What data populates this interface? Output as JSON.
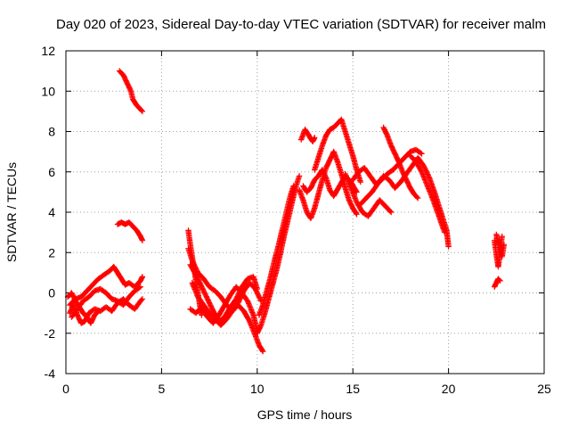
{
  "chart_data": {
    "type": "scatter",
    "title": "Day 020 of 2023, Sidereal Day-to-day VTEC variation (SDTVAR) for receiver malm",
    "xlabel": "GPS time / hours",
    "ylabel": "SDTVAR / TECUs",
    "xlim": [
      0,
      25
    ],
    "ylim": [
      -4,
      12
    ],
    "xticks": [
      0,
      5,
      10,
      15,
      20,
      25
    ],
    "yticks": [
      -4,
      -2,
      0,
      2,
      4,
      6,
      8,
      10,
      12
    ],
    "grid": true,
    "marker": "plus",
    "series": [
      {
        "name": "SDTVAR",
        "color": "#ff0000",
        "tracks": [
          [
            [
              0.2,
              -1.0
            ],
            [
              0.4,
              -0.6
            ],
            [
              0.6,
              -1.1
            ],
            [
              0.8,
              -1.5
            ],
            [
              1.0,
              -1.4
            ],
            [
              1.2,
              -1.0
            ],
            [
              1.5,
              -0.8
            ],
            [
              1.8,
              -0.9
            ],
            [
              2.1,
              -0.7
            ],
            [
              2.4,
              -0.9
            ],
            [
              2.7,
              -0.5
            ],
            [
              3.0,
              -0.3
            ],
            [
              3.3,
              -0.6
            ],
            [
              3.6,
              -0.8
            ],
            [
              3.9,
              -0.4
            ],
            [
              4.0,
              -0.3
            ]
          ],
          [
            [
              0.2,
              -0.6
            ],
            [
              0.5,
              -0.3
            ],
            [
              0.8,
              -0.2
            ],
            [
              1.1,
              0.1
            ],
            [
              1.4,
              0.4
            ],
            [
              1.7,
              0.7
            ],
            [
              2.0,
              0.9
            ],
            [
              2.3,
              1.1
            ],
            [
              2.5,
              1.3
            ],
            [
              2.7,
              1.0
            ],
            [
              2.9,
              0.7
            ],
            [
              3.1,
              0.4
            ],
            [
              3.3,
              0.5
            ],
            [
              3.6,
              0.3
            ],
            [
              3.9,
              0.6
            ],
            [
              4.0,
              0.8
            ]
          ],
          [
            [
              0.3,
              -1.2
            ],
            [
              0.6,
              -0.8
            ],
            [
              0.9,
              -0.4
            ],
            [
              1.2,
              -0.2
            ],
            [
              1.5,
              0.1
            ],
            [
              1.8,
              0.2
            ],
            [
              2.1,
              0.0
            ],
            [
              2.4,
              -0.3
            ],
            [
              2.7,
              -0.4
            ],
            [
              3.0,
              -0.6
            ],
            [
              3.3,
              -0.2
            ],
            [
              3.6,
              0.1
            ],
            [
              3.9,
              0.3
            ]
          ],
          [
            [
              0.1,
              -0.2
            ],
            [
              0.3,
              0.0
            ],
            [
              0.5,
              -0.4
            ],
            [
              0.7,
              -0.7
            ],
            [
              0.9,
              -1.0
            ],
            [
              1.1,
              -1.2
            ],
            [
              1.3,
              -1.5
            ],
            [
              1.5,
              -1.1
            ],
            [
              1.7,
              -0.9
            ]
          ],
          [
            [
              2.8,
              11.0
            ],
            [
              3.0,
              10.8
            ],
            [
              3.2,
              10.4
            ],
            [
              3.4,
              10.0
            ],
            [
              3.5,
              9.6
            ],
            [
              3.7,
              9.3
            ],
            [
              3.9,
              9.1
            ],
            [
              4.0,
              9.0
            ]
          ],
          [
            [
              2.7,
              3.4
            ],
            [
              2.9,
              3.5
            ],
            [
              3.1,
              3.4
            ],
            [
              3.3,
              3.5
            ],
            [
              3.5,
              3.3
            ],
            [
              3.7,
              3.1
            ],
            [
              3.9,
              2.8
            ],
            [
              4.0,
              2.6
            ]
          ],
          [
            [
              6.4,
              3.1
            ],
            [
              6.5,
              2.4
            ],
            [
              6.6,
              1.8
            ],
            [
              6.7,
              1.2
            ],
            [
              6.8,
              0.6
            ],
            [
              6.9,
              0.0
            ],
            [
              7.0,
              -0.6
            ],
            [
              7.1,
              -1.1
            ]
          ],
          [
            [
              6.4,
              2.2
            ],
            [
              6.6,
              1.6
            ],
            [
              6.9,
              1.0
            ],
            [
              7.2,
              0.7
            ],
            [
              7.5,
              0.3
            ],
            [
              7.8,
              0.1
            ],
            [
              8.1,
              -0.2
            ],
            [
              8.4,
              -0.6
            ],
            [
              8.7,
              -0.9
            ],
            [
              9.0,
              -0.5
            ],
            [
              9.3,
              0.1
            ],
            [
              9.6,
              0.5
            ],
            [
              9.9,
              0.2
            ],
            [
              10.2,
              -0.4
            ]
          ],
          [
            [
              6.5,
              1.4
            ],
            [
              6.8,
              0.9
            ],
            [
              7.1,
              0.3
            ],
            [
              7.4,
              -0.3
            ],
            [
              7.7,
              -0.9
            ],
            [
              8.0,
              -1.4
            ],
            [
              8.3,
              -1.2
            ],
            [
              8.6,
              -0.7
            ],
            [
              8.9,
              -0.3
            ],
            [
              9.2,
              0.3
            ],
            [
              9.5,
              0.7
            ],
            [
              9.8,
              0.8
            ],
            [
              10.0,
              0.2
            ]
          ],
          [
            [
              6.6,
              0.5
            ],
            [
              6.9,
              -0.2
            ],
            [
              7.2,
              -0.6
            ],
            [
              7.5,
              -1.0
            ],
            [
              7.8,
              -1.3
            ],
            [
              8.1,
              -1.6
            ],
            [
              8.4,
              -1.3
            ],
            [
              8.7,
              -0.9
            ],
            [
              9.0,
              -0.6
            ],
            [
              9.3,
              -0.9
            ],
            [
              9.6,
              -1.4
            ],
            [
              9.9,
              -2.1
            ],
            [
              10.1,
              -2.6
            ],
            [
              10.3,
              -2.9
            ]
          ],
          [
            [
              6.5,
              -0.8
            ],
            [
              6.8,
              -1.0
            ],
            [
              7.1,
              -0.7
            ],
            [
              7.4,
              -1.2
            ],
            [
              7.7,
              -1.5
            ],
            [
              8.0,
              -1.1
            ],
            [
              8.3,
              -0.6
            ],
            [
              8.6,
              -0.1
            ],
            [
              8.9,
              0.3
            ],
            [
              9.2,
              0.0
            ],
            [
              9.5,
              -0.4
            ],
            [
              9.8,
              -1.1
            ],
            [
              10.0,
              -1.9
            ]
          ],
          [
            [
              10.0,
              -2.0
            ],
            [
              10.2,
              -1.6
            ],
            [
              10.4,
              -1.0
            ],
            [
              10.6,
              -0.3
            ],
            [
              10.8,
              0.4
            ],
            [
              11.0,
              1.1
            ],
            [
              11.2,
              1.9
            ],
            [
              11.4,
              2.8
            ],
            [
              11.6,
              3.6
            ],
            [
              11.8,
              4.4
            ],
            [
              12.0,
              5.2
            ],
            [
              12.2,
              5.8
            ]
          ],
          [
            [
              10.1,
              -1.1
            ],
            [
              10.3,
              -0.6
            ],
            [
              10.5,
              0.1
            ],
            [
              10.7,
              0.8
            ],
            [
              10.9,
              1.6
            ],
            [
              11.1,
              2.3
            ],
            [
              11.3,
              3.1
            ],
            [
              11.5,
              3.9
            ],
            [
              11.7,
              4.7
            ],
            [
              11.9,
              5.3
            ]
          ],
          [
            [
              12.2,
              5.1
            ],
            [
              12.4,
              4.6
            ],
            [
              12.6,
              4.0
            ],
            [
              12.8,
              3.7
            ],
            [
              13.0,
              4.2
            ],
            [
              13.2,
              4.9
            ],
            [
              13.4,
              5.6
            ],
            [
              13.6,
              6.2
            ],
            [
              13.8,
              6.6
            ],
            [
              14.0,
              7.0
            ],
            [
              14.2,
              6.5
            ],
            [
              14.4,
              5.9
            ],
            [
              14.6,
              5.2
            ],
            [
              14.8,
              4.6
            ],
            [
              15.0,
              4.2
            ],
            [
              15.2,
              3.9
            ]
          ],
          [
            [
              12.3,
              7.6
            ],
            [
              12.5,
              8.1
            ],
            [
              12.7,
              7.8
            ],
            [
              12.9,
              7.5
            ],
            [
              13.0,
              7.7
            ]
          ],
          [
            [
              13.0,
              6.1
            ],
            [
              13.2,
              6.7
            ],
            [
              13.4,
              7.3
            ],
            [
              13.6,
              7.8
            ],
            [
              13.8,
              8.1
            ],
            [
              14.0,
              8.2
            ],
            [
              14.2,
              8.4
            ],
            [
              14.4,
              8.6
            ],
            [
              14.6,
              8.0
            ],
            [
              14.8,
              7.4
            ],
            [
              15.0,
              6.8
            ],
            [
              15.2,
              6.1
            ],
            [
              15.4,
              5.5
            ]
          ],
          [
            [
              12.4,
              5.3
            ],
            [
              12.6,
              5.0
            ],
            [
              12.8,
              5.2
            ],
            [
              13.0,
              5.6
            ],
            [
              13.2,
              5.8
            ],
            [
              13.4,
              6.1
            ],
            [
              13.6,
              5.7
            ],
            [
              13.8,
              5.1
            ],
            [
              14.0,
              4.8
            ],
            [
              14.3,
              5.3
            ],
            [
              14.6,
              5.8
            ],
            [
              14.9,
              5.5
            ],
            [
              15.2,
              5.0
            ]
          ],
          [
            [
              14.6,
              5.9
            ],
            [
              14.9,
              5.2
            ],
            [
              15.2,
              4.5
            ],
            [
              15.5,
              4.0
            ],
            [
              15.8,
              3.8
            ],
            [
              16.1,
              4.2
            ],
            [
              16.4,
              4.6
            ],
            [
              16.7,
              4.3
            ],
            [
              17.0,
              4.0
            ]
          ],
          [
            [
              15.0,
              5.6
            ],
            [
              15.3,
              6.0
            ],
            [
              15.6,
              6.2
            ],
            [
              15.9,
              5.8
            ],
            [
              16.2,
              5.4
            ],
            [
              16.5,
              5.6
            ],
            [
              16.8,
              5.9
            ],
            [
              17.1,
              6.1
            ],
            [
              17.4,
              6.4
            ],
            [
              17.7,
              6.7
            ],
            [
              18.0,
              7.0
            ],
            [
              18.3,
              7.1
            ],
            [
              18.6,
              6.9
            ]
          ],
          [
            [
              16.6,
              8.2
            ],
            [
              16.8,
              7.8
            ],
            [
              17.0,
              7.3
            ],
            [
              17.2,
              6.9
            ],
            [
              17.4,
              6.5
            ],
            [
              17.6,
              6.0
            ],
            [
              17.8,
              5.6
            ],
            [
              18.0,
              5.2
            ],
            [
              18.2,
              4.9
            ],
            [
              18.4,
              4.7
            ]
          ],
          [
            [
              15.4,
              4.4
            ],
            [
              15.7,
              4.7
            ],
            [
              16.0,
              5.0
            ],
            [
              16.3,
              5.4
            ],
            [
              16.6,
              5.8
            ],
            [
              16.9,
              5.6
            ],
            [
              17.2,
              5.2
            ],
            [
              17.5,
              5.5
            ],
            [
              17.8,
              5.9
            ],
            [
              18.1,
              6.3
            ],
            [
              18.4,
              6.7
            ],
            [
              18.7,
              6.3
            ],
            [
              19.0,
              5.7
            ],
            [
              19.3,
              4.9
            ],
            [
              19.6,
              4.0
            ],
            [
              19.9,
              3.1
            ],
            [
              20.0,
              2.3
            ]
          ],
          [
            [
              18.0,
              6.8
            ],
            [
              18.3,
              6.5
            ],
            [
              18.6,
              6.0
            ],
            [
              18.9,
              5.3
            ],
            [
              19.2,
              4.6
            ],
            [
              19.5,
              3.8
            ],
            [
              19.8,
              3.0
            ]
          ],
          [
            [
              22.4,
              2.6
            ],
            [
              22.5,
              1.9
            ],
            [
              22.6,
              1.3
            ],
            [
              22.7,
              2.1
            ],
            [
              22.8,
              2.8
            ]
          ],
          [
            [
              22.4,
              0.3
            ],
            [
              22.5,
              0.5
            ],
            [
              22.6,
              0.7
            ],
            [
              22.7,
              0.6
            ]
          ],
          [
            [
              22.5,
              2.9
            ],
            [
              22.6,
              2.5
            ],
            [
              22.7,
              2.2
            ],
            [
              22.8,
              1.8
            ],
            [
              22.9,
              2.4
            ]
          ]
        ]
      }
    ]
  }
}
